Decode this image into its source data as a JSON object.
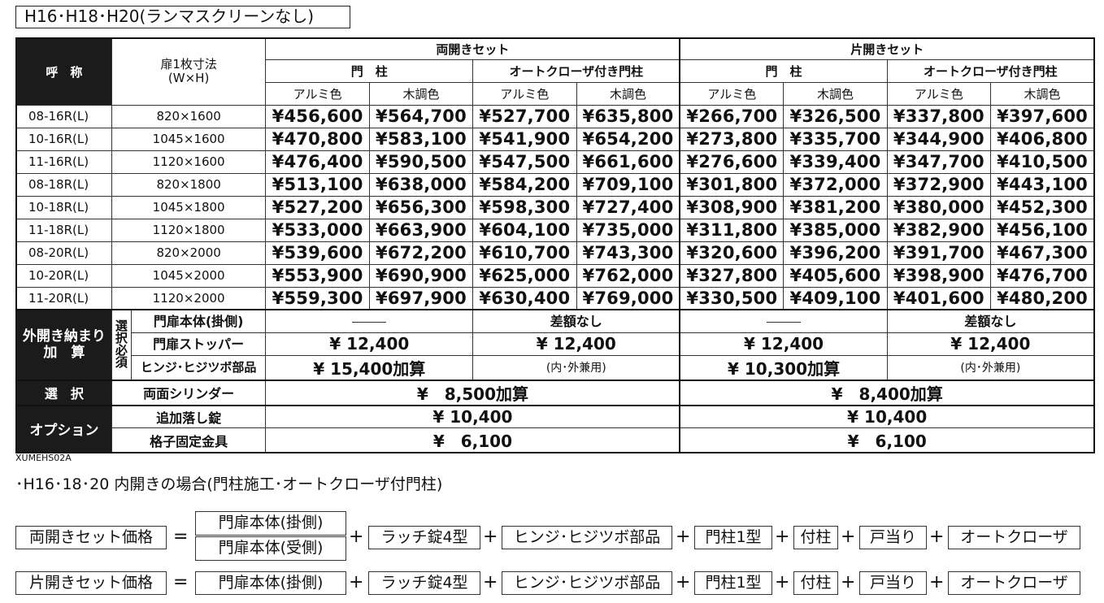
{
  "title": "H16･H18･H20(ランマスクリーンなし)",
  "header": {
    "name": "呼　称",
    "size": "扉1枚寸法\n(W×H)",
    "double_set": "両開きセット",
    "single_set": "片開きセット",
    "post": "門　柱",
    "auto_post": "オートクローザ付き門柱",
    "alumi": "アルミ色",
    "wood": "木調色"
  },
  "rows": [
    {
      "name": "08-16R(L)",
      "size": "820×1600",
      "p": [
        "¥456,600",
        "¥564,700",
        "¥527,700",
        "¥635,800",
        "¥266,700",
        "¥326,500",
        "¥337,800",
        "¥397,600"
      ]
    },
    {
      "name": "10-16R(L)",
      "size": "1045×1600",
      "p": [
        "¥470,800",
        "¥583,100",
        "¥541,900",
        "¥654,200",
        "¥273,800",
        "¥335,700",
        "¥344,900",
        "¥406,800"
      ]
    },
    {
      "name": "11-16R(L)",
      "size": "1120×1600",
      "p": [
        "¥476,400",
        "¥590,500",
        "¥547,500",
        "¥661,600",
        "¥276,600",
        "¥339,400",
        "¥347,700",
        "¥410,500"
      ]
    },
    {
      "name": "08-18R(L)",
      "size": "820×1800",
      "p": [
        "¥513,100",
        "¥638,000",
        "¥584,200",
        "¥709,100",
        "¥301,800",
        "¥372,000",
        "¥372,900",
        "¥443,100"
      ]
    },
    {
      "name": "10-18R(L)",
      "size": "1045×1800",
      "p": [
        "¥527,200",
        "¥656,300",
        "¥598,300",
        "¥727,400",
        "¥308,900",
        "¥381,200",
        "¥380,000",
        "¥452,300"
      ]
    },
    {
      "name": "11-18R(L)",
      "size": "1120×1800",
      "p": [
        "¥533,000",
        "¥663,900",
        "¥604,100",
        "¥735,000",
        "¥311,800",
        "¥385,000",
        "¥382,900",
        "¥456,100"
      ]
    },
    {
      "name": "08-20R(L)",
      "size": "820×2000",
      "p": [
        "¥539,600",
        "¥672,200",
        "¥610,700",
        "¥743,300",
        "¥320,600",
        "¥396,200",
        "¥391,700",
        "¥467,300"
      ]
    },
    {
      "name": "10-20R(L)",
      "size": "1045×2000",
      "p": [
        "¥553,900",
        "¥690,900",
        "¥625,000",
        "¥762,000",
        "¥327,800",
        "¥405,600",
        "¥398,900",
        "¥476,700"
      ]
    },
    {
      "name": "11-20R(L)",
      "size": "1120×2000",
      "p": [
        "¥559,300",
        "¥697,900",
        "¥630,400",
        "¥769,000",
        "¥330,500",
        "¥409,100",
        "¥401,600",
        "¥480,200"
      ]
    }
  ],
  "outward": {
    "label": "外開き納まり\n加　算",
    "required": "選\n択\n必\n須",
    "items": [
      "門扉本体(掛側)",
      "門扉ストッパー",
      "ヒンジ･ヒジツボ部品"
    ],
    "double_post": [
      "",
      "¥  12,400",
      "¥  15,400加算"
    ],
    "double_auto": [
      "差額なし",
      "¥  12,400",
      "(内･外兼用)"
    ],
    "single_post": [
      "",
      "¥  12,400",
      "¥  10,300加算"
    ],
    "single_auto": [
      "差額なし",
      "¥  12,400",
      "(内･外兼用)"
    ]
  },
  "select": {
    "label": "選　択",
    "item": "両面シリンダー",
    "double": "¥　8,500加算",
    "single": "¥　8,400加算"
  },
  "option": {
    "label": "オプション",
    "items": [
      {
        "name": "追加落し錠",
        "double": "¥  10,400",
        "single": "¥  10,400"
      },
      {
        "name": "格子固定金具",
        "double": "¥　6,100",
        "single": "¥　6,100"
      }
    ]
  },
  "code": "XUMEHS02A",
  "note": "･H16･18･20 内開きの場合(門柱施工･オートクローザ付門柱)",
  "formula": {
    "double_label": "両開きセット価格",
    "single_label": "片開きセット価格",
    "eq": "=",
    "plus": "+",
    "gate_hang": "門扉本体(掛側)",
    "gate_recv": "門扉本体(受側)",
    "latch": "ラッチ錠4型",
    "hinge": "ヒンジ･ヒジツボ部品",
    "post1": "門柱1型",
    "tsukebashira": "付柱",
    "stopper": "戸当り",
    "closer": "オートクローザ"
  }
}
